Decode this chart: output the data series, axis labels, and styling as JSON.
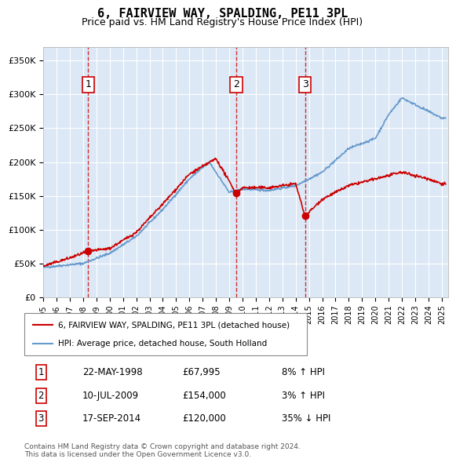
{
  "title": "6, FAIRVIEW WAY, SPALDING, PE11 3PL",
  "subtitle": "Price paid vs. HM Land Registry's House Price Index (HPI)",
  "ylabel": "",
  "ylim": [
    0,
    370000
  ],
  "yticks": [
    0,
    50000,
    100000,
    150000,
    200000,
    250000,
    300000,
    350000
  ],
  "ytick_labels": [
    "£0",
    "£50K",
    "£100K",
    "£150K",
    "£200K",
    "£250K",
    "£300K",
    "£350K"
  ],
  "bg_color": "#e8f0f8",
  "plot_bg": "#dce8f5",
  "red_color": "#cc0000",
  "blue_color": "#6699cc",
  "sale_dates": [
    1998.38,
    2009.52,
    2014.71
  ],
  "sale_prices": [
    67995,
    154000,
    120000
  ],
  "sale_labels": [
    "1",
    "2",
    "3"
  ],
  "legend_entries": [
    "6, FAIRVIEW WAY, SPALDING, PE11 3PL (detached house)",
    "HPI: Average price, detached house, South Holland"
  ],
  "table_rows": [
    [
      "1",
      "22-MAY-1998",
      "£67,995",
      "8% ↑ HPI"
    ],
    [
      "2",
      "10-JUL-2009",
      "£154,000",
      "3% ↑ HPI"
    ],
    [
      "3",
      "17-SEP-2014",
      "£120,000",
      "35% ↓ HPI"
    ]
  ],
  "footer": "Contains HM Land Registry data © Crown copyright and database right 2024.\nThis data is licensed under the Open Government Licence v3.0.",
  "xmin": 1995.0,
  "xmax": 2025.5
}
